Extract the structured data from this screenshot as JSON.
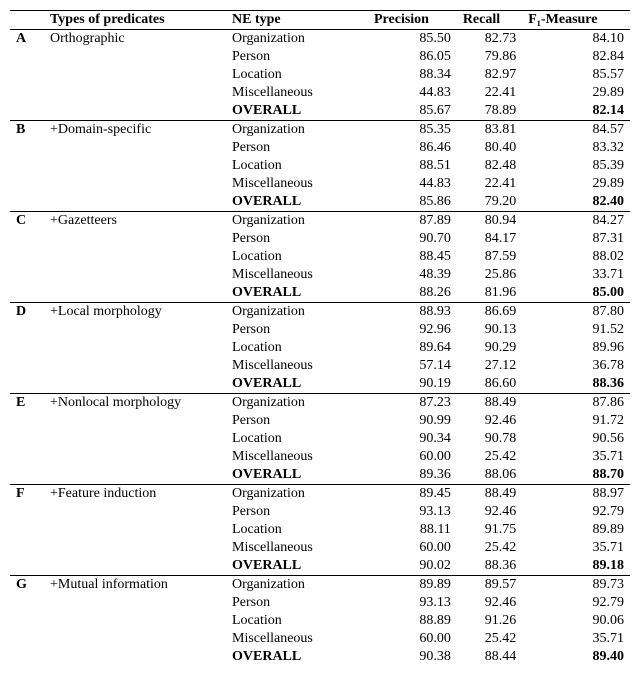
{
  "headers": {
    "col0": "",
    "col1": "Types of predicates",
    "col2": "NE type",
    "col3": "Precision",
    "col4": "Recall",
    "col5": "F₁-Measure"
  },
  "sections": [
    {
      "id": "A",
      "predicate": "Orthographic",
      "rows": [
        {
          "ne": "Organization",
          "p": "85.50",
          "r": "82.73",
          "f": "84.10"
        },
        {
          "ne": "Person",
          "p": "86.05",
          "r": "79.86",
          "f": "82.84"
        },
        {
          "ne": "Location",
          "p": "88.34",
          "r": "82.97",
          "f": "85.57"
        },
        {
          "ne": "Miscellaneous",
          "p": "44.83",
          "r": "22.41",
          "f": "29.89"
        }
      ],
      "overall": {
        "ne": "OVERALL",
        "p": "85.67",
        "r": "78.89",
        "f": "82.14"
      }
    },
    {
      "id": "B",
      "predicate": "+Domain-specific",
      "rows": [
        {
          "ne": "Organization",
          "p": "85.35",
          "r": "83.81",
          "f": "84.57"
        },
        {
          "ne": "Person",
          "p": "86.46",
          "r": "80.40",
          "f": "83.32"
        },
        {
          "ne": "Location",
          "p": "88.51",
          "r": "82.48",
          "f": "85.39"
        },
        {
          "ne": "Miscellaneous",
          "p": "44.83",
          "r": "22.41",
          "f": "29.89"
        }
      ],
      "overall": {
        "ne": "OVERALL",
        "p": "85.86",
        "r": "79.20",
        "f": "82.40"
      }
    },
    {
      "id": "C",
      "predicate": "+Gazetteers",
      "rows": [
        {
          "ne": "Organization",
          "p": "87.89",
          "r": "80.94",
          "f": "84.27"
        },
        {
          "ne": "Person",
          "p": "90.70",
          "r": "84.17",
          "f": "87.31"
        },
        {
          "ne": "Location",
          "p": "88.45",
          "r": "87.59",
          "f": "88.02"
        },
        {
          "ne": "Miscellaneous",
          "p": "48.39",
          "r": "25.86",
          "f": "33.71"
        }
      ],
      "overall": {
        "ne": "OVERALL",
        "p": "88.26",
        "r": "81.96",
        "f": "85.00"
      }
    },
    {
      "id": "D",
      "predicate": "+Local morphology",
      "rows": [
        {
          "ne": "Organization",
          "p": "88.93",
          "r": "86.69",
          "f": "87.80"
        },
        {
          "ne": "Person",
          "p": "92.96",
          "r": "90.13",
          "f": "91.52"
        },
        {
          "ne": "Location",
          "p": "89.64",
          "r": "90.29",
          "f": "89.96"
        },
        {
          "ne": "Miscellaneous",
          "p": "57.14",
          "r": "27.12",
          "f": "36.78"
        }
      ],
      "overall": {
        "ne": "OVERALL",
        "p": "90.19",
        "r": "86.60",
        "f": "88.36"
      }
    },
    {
      "id": "E",
      "predicate": "+Nonlocal morphology",
      "rows": [
        {
          "ne": "Organization",
          "p": "87.23",
          "r": "88.49",
          "f": "87.86"
        },
        {
          "ne": "Person",
          "p": "90.99",
          "r": "92.46",
          "f": "91.72"
        },
        {
          "ne": "Location",
          "p": "90.34",
          "r": "90.78",
          "f": "90.56"
        },
        {
          "ne": "Miscellaneous",
          "p": "60.00",
          "r": "25.42",
          "f": "35.71"
        }
      ],
      "overall": {
        "ne": "OVERALL",
        "p": "89.36",
        "r": "88.06",
        "f": "88.70"
      }
    },
    {
      "id": "F",
      "predicate": "+Feature induction",
      "rows": [
        {
          "ne": "Organization",
          "p": "89.45",
          "r": "88.49",
          "f": "88.97"
        },
        {
          "ne": "Person",
          "p": "93.13",
          "r": "92.46",
          "f": "92.79"
        },
        {
          "ne": "Location",
          "p": "88.11",
          "r": "91.75",
          "f": "89.89"
        },
        {
          "ne": "Miscellaneous",
          "p": "60.00",
          "r": "25.42",
          "f": "35.71"
        }
      ],
      "overall": {
        "ne": "OVERALL",
        "p": "90.02",
        "r": "88.36",
        "f": "89.18"
      }
    },
    {
      "id": "G",
      "predicate": "+Mutual information",
      "rows": [
        {
          "ne": "Organization",
          "p": "89.89",
          "r": "89.57",
          "f": "89.73"
        },
        {
          "ne": "Person",
          "p": "93.13",
          "r": "92.46",
          "f": "92.79"
        },
        {
          "ne": "Location",
          "p": "88.89",
          "r": "91.26",
          "f": "90.06"
        },
        {
          "ne": "Miscellaneous",
          "p": "60.00",
          "r": "25.42",
          "f": "35.71"
        }
      ],
      "overall": {
        "ne": "OVERALL",
        "p": "90.38",
        "r": "88.44",
        "f": "89.40"
      }
    }
  ]
}
